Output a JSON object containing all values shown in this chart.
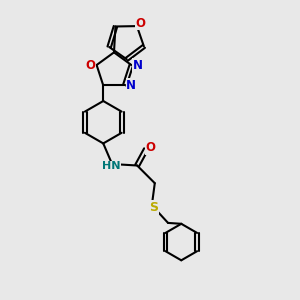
{
  "background_color": "#e8e8e8",
  "bond_color": "#000000",
  "nitrogen_color": "#0000cc",
  "oxygen_color": "#cc0000",
  "sulfur_color": "#bbaa00",
  "nh_color": "#007777",
  "line_width": 1.5,
  "figsize": [
    3.0,
    3.0
  ],
  "dpi": 100,
  "xlim": [
    -2.5,
    3.5
  ],
  "ylim": [
    -4.5,
    5.5
  ]
}
